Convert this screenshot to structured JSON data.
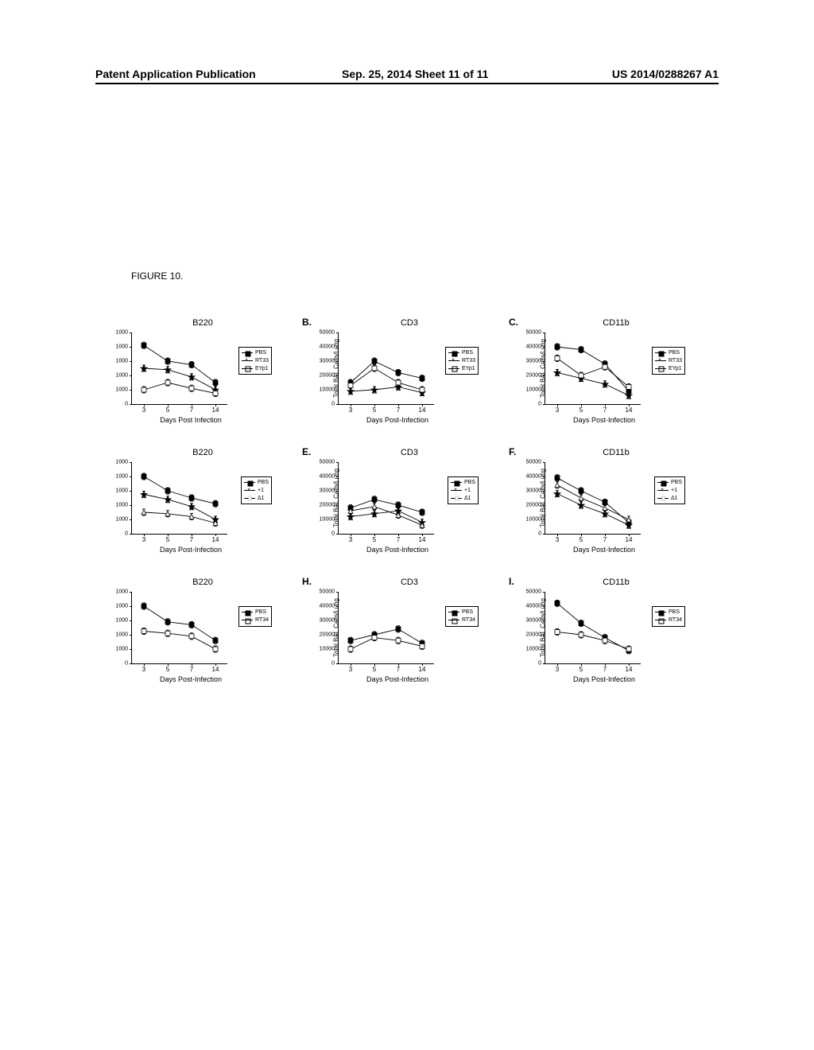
{
  "header": {
    "left": "Patent Application Publication",
    "mid": "Sep. 25, 2014  Sheet 11 of 11",
    "right": "US 2014/0288267 A1"
  },
  "figure_label": "FIGURE 10.",
  "x_axis": {
    "ticks": [
      3,
      5,
      7,
      14
    ],
    "labels": [
      "3",
      "5",
      "7",
      "14"
    ],
    "title_variants": [
      "Days Post Infection",
      "Days Post-Infection"
    ]
  },
  "y_axes": {
    "b220": {
      "label": "",
      "ticks": [
        0,
        200,
        400,
        600,
        800,
        1000
      ],
      "tick_labels": [
        "0",
        "1000",
        "1000",
        "1000",
        "1000",
        "1000"
      ],
      "ymax": 1000
    },
    "cd3_cd11b": {
      "label": "Total BAL Cells/Lung",
      "ticks": [
        0,
        10000,
        20000,
        30000,
        40000,
        50000
      ],
      "tick_labels": [
        "0",
        "10000",
        "20000",
        "30000",
        "40000",
        "50000"
      ],
      "ymax": 50000
    }
  },
  "series_sets": {
    "set1": [
      {
        "key": "PBS",
        "label": "PBS",
        "marker": "square",
        "fill": "solid"
      },
      {
        "key": "RT33",
        "label": "RT33",
        "marker": "star",
        "fill": "solid"
      },
      {
        "key": "EYp1",
        "label": "EYp1",
        "marker": "square",
        "fill": "open"
      }
    ],
    "set2": [
      {
        "key": "PBS",
        "label": "PBS",
        "marker": "square",
        "fill": "solid"
      },
      {
        "key": "plus1",
        "label": "+1",
        "marker": "star",
        "fill": "solid"
      },
      {
        "key": "delta1",
        "label": "Δ1",
        "marker": "triangle",
        "fill": "open"
      }
    ],
    "set3": [
      {
        "key": "PBS",
        "label": "PBS",
        "marker": "square",
        "fill": "solid"
      },
      {
        "key": "RT34",
        "label": "RT34",
        "marker": "square",
        "fill": "open"
      }
    ]
  },
  "rows": [
    {
      "set": "set1",
      "panels": [
        {
          "label": "",
          "title": "B220",
          "yaxis": "b220",
          "xtitle": "Days Post Infection",
          "data": {
            "PBS": [
              820,
              600,
              550,
              300
            ],
            "RT33": [
              500,
              480,
              380,
              200
            ],
            "EYp1": [
              200,
              300,
              220,
              150
            ]
          }
        },
        {
          "label": "B.",
          "title": "CD3",
          "yaxis": "cd3_cd11b",
          "xtitle": "Days Post-Infection",
          "data": {
            "PBS": [
              15000,
              30000,
              22000,
              18000
            ],
            "RT33": [
              9000,
              10000,
              12000,
              8000
            ],
            "EYp1": [
              13000,
              25000,
              15000,
              10000
            ]
          }
        },
        {
          "label": "C.",
          "title": "CD11b",
          "yaxis": "cd3_cd11b",
          "xtitle": "Days Post-Infection",
          "data": {
            "PBS": [
              40000,
              38000,
              28000,
              9000
            ],
            "RT33": [
              22000,
              18000,
              14000,
              6000
            ],
            "EYp1": [
              32000,
              20000,
              26000,
              12000
            ]
          }
        }
      ]
    },
    {
      "set": "set2",
      "panels": [
        {
          "label": "",
          "title": "B220",
          "yaxis": "b220",
          "xtitle": "Days Post-Infection",
          "data": {
            "PBS": [
              800,
              600,
              500,
              420
            ],
            "plus1": [
              550,
              480,
              380,
              200
            ],
            "delta1": [
              300,
              280,
              240,
              150
            ]
          }
        },
        {
          "label": "E.",
          "title": "CD3",
          "yaxis": "cd3_cd11b",
          "xtitle": "Days Post-Infection",
          "data": {
            "PBS": [
              18000,
              24000,
              20000,
              15000
            ],
            "plus1": [
              12000,
              14000,
              16000,
              8000
            ],
            "delta1": [
              16000,
              19000,
              13000,
              6000
            ]
          }
        },
        {
          "label": "F.",
          "title": "CD11b",
          "yaxis": "cd3_cd11b",
          "xtitle": "Days Post-Infection",
          "data": {
            "PBS": [
              39000,
              30000,
              22000,
              8000
            ],
            "plus1": [
              28000,
              20000,
              14000,
              6000
            ],
            "delta1": [
              34000,
              25000,
              18000,
              10000
            ]
          }
        }
      ]
    },
    {
      "set": "set3",
      "panels": [
        {
          "label": "",
          "title": "B220",
          "yaxis": "b220",
          "xtitle": "Days Post-Infection",
          "data": {
            "PBS": [
              800,
              580,
              540,
              320
            ],
            "RT34": [
              450,
              420,
              380,
              200
            ]
          }
        },
        {
          "label": "H.",
          "title": "CD3",
          "yaxis": "cd3_cd11b",
          "xtitle": "Days Post-Infection",
          "data": {
            "PBS": [
              16000,
              20000,
              24000,
              14000
            ],
            "RT34": [
              10000,
              18000,
              16000,
              12000
            ]
          }
        },
        {
          "label": "I.",
          "title": "CD11b",
          "yaxis": "cd3_cd11b",
          "xtitle": "Days Post-Infection",
          "data": {
            "PBS": [
              42000,
              28000,
              18000,
              9000
            ],
            "RT34": [
              22000,
              20000,
              16000,
              10000
            ]
          }
        }
      ]
    }
  ],
  "plot": {
    "w": 120,
    "h": 90,
    "errbar": 4
  },
  "colors": {
    "line": "#000000",
    "bg": "#ffffff"
  }
}
